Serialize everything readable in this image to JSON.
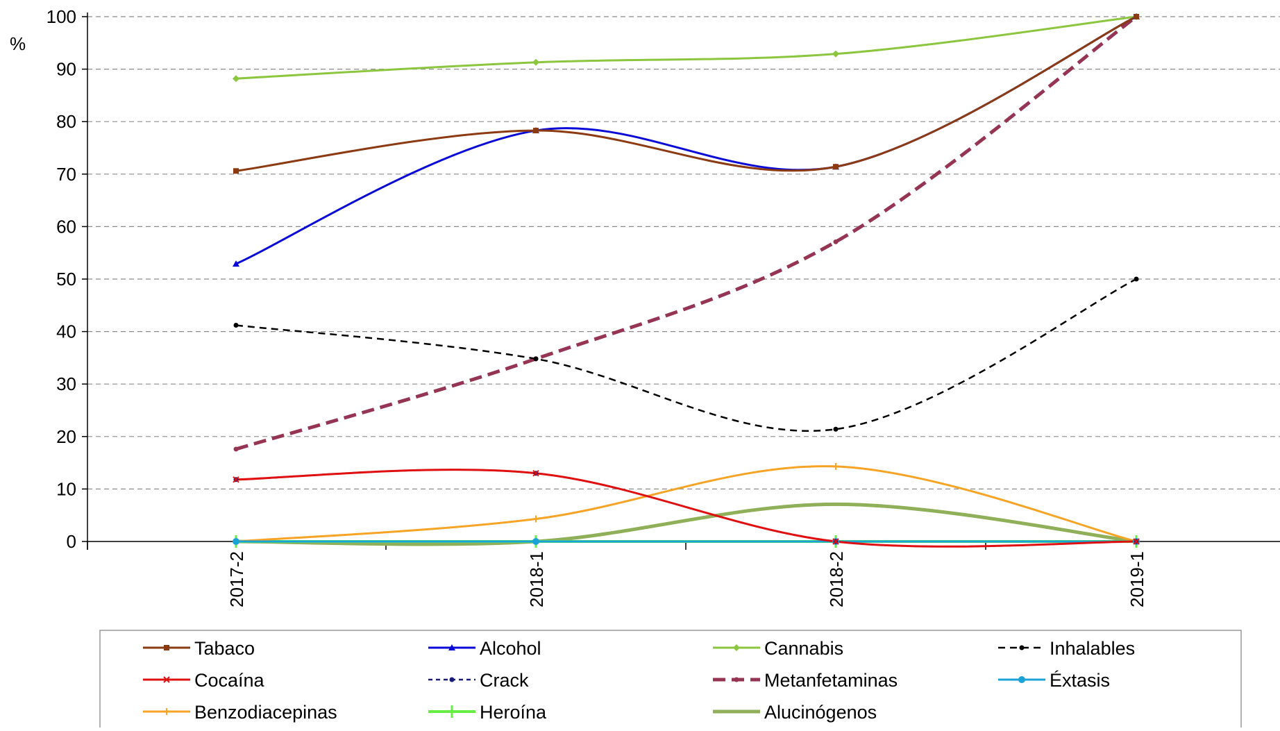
{
  "chart_data": {
    "type": "line",
    "ylabel": "%",
    "ylim": [
      0,
      100
    ],
    "y_ticks": [
      "0",
      "10",
      "20",
      "30",
      "40",
      "50",
      "60",
      "70",
      "80",
      "90",
      "100"
    ],
    "categories": [
      "2017-2",
      "2018-1",
      "2018-2",
      "2019-1"
    ],
    "grid": "horizontal dashed",
    "legend_position": "bottom",
    "series": [
      {
        "name": "Tabaco",
        "values": [
          70.6,
          78.3,
          71.4,
          100
        ],
        "color": "#8B3A12",
        "dash": "",
        "width": 3,
        "marker": "square"
      },
      {
        "name": "Alcohol",
        "values": [
          52.9,
          78.3,
          71.4,
          100
        ],
        "color": "#0A0AD8",
        "dash": "",
        "width": 3,
        "marker": "triangle"
      },
      {
        "name": "Cannabis",
        "values": [
          88.2,
          91.3,
          92.9,
          100
        ],
        "color": "#8CC63F",
        "dash": "",
        "width": 3,
        "marker": "diamond"
      },
      {
        "name": "Inhalables",
        "values": [
          41.2,
          34.8,
          21.4,
          50
        ],
        "color": "#000000",
        "dash": "10 7",
        "width": 2.5,
        "marker": "dot"
      },
      {
        "name": "Cocaína",
        "values": [
          11.8,
          13.0,
          0,
          0
        ],
        "color": "#E01010",
        "dash": "",
        "width": 3,
        "marker": "cross"
      },
      {
        "name": "Crack",
        "values": [
          11.8,
          13.0,
          0,
          0
        ],
        "color": "#1A1A7A",
        "dash": "6 5",
        "width": 2.5,
        "marker": "dot"
      },
      {
        "name": "Metanfetaminas",
        "values": [
          17.6,
          34.8,
          57.1,
          100
        ],
        "color": "#953553",
        "dash": "18 9",
        "width": 5,
        "marker": "dot"
      },
      {
        "name": "Éxtasis",
        "values": [
          0,
          0,
          0,
          0
        ],
        "color": "#1BA3D8",
        "dash": "",
        "width": 3,
        "marker": "circle"
      },
      {
        "name": "Benzodiacepinas",
        "values": [
          0,
          4.3,
          14.3,
          0
        ],
        "color": "#F7A325",
        "dash": "",
        "width": 3,
        "marker": "plus"
      },
      {
        "name": "Heroína",
        "values": [
          0,
          0,
          0,
          0
        ],
        "color": "#66EE44",
        "dash": "",
        "width": 4,
        "marker": "bar"
      },
      {
        "name": "Alucinógenos",
        "values": [
          0,
          0,
          7.1,
          0
        ],
        "color": "#8FAF58",
        "dash": "",
        "width": 5,
        "marker": "none"
      }
    ]
  }
}
